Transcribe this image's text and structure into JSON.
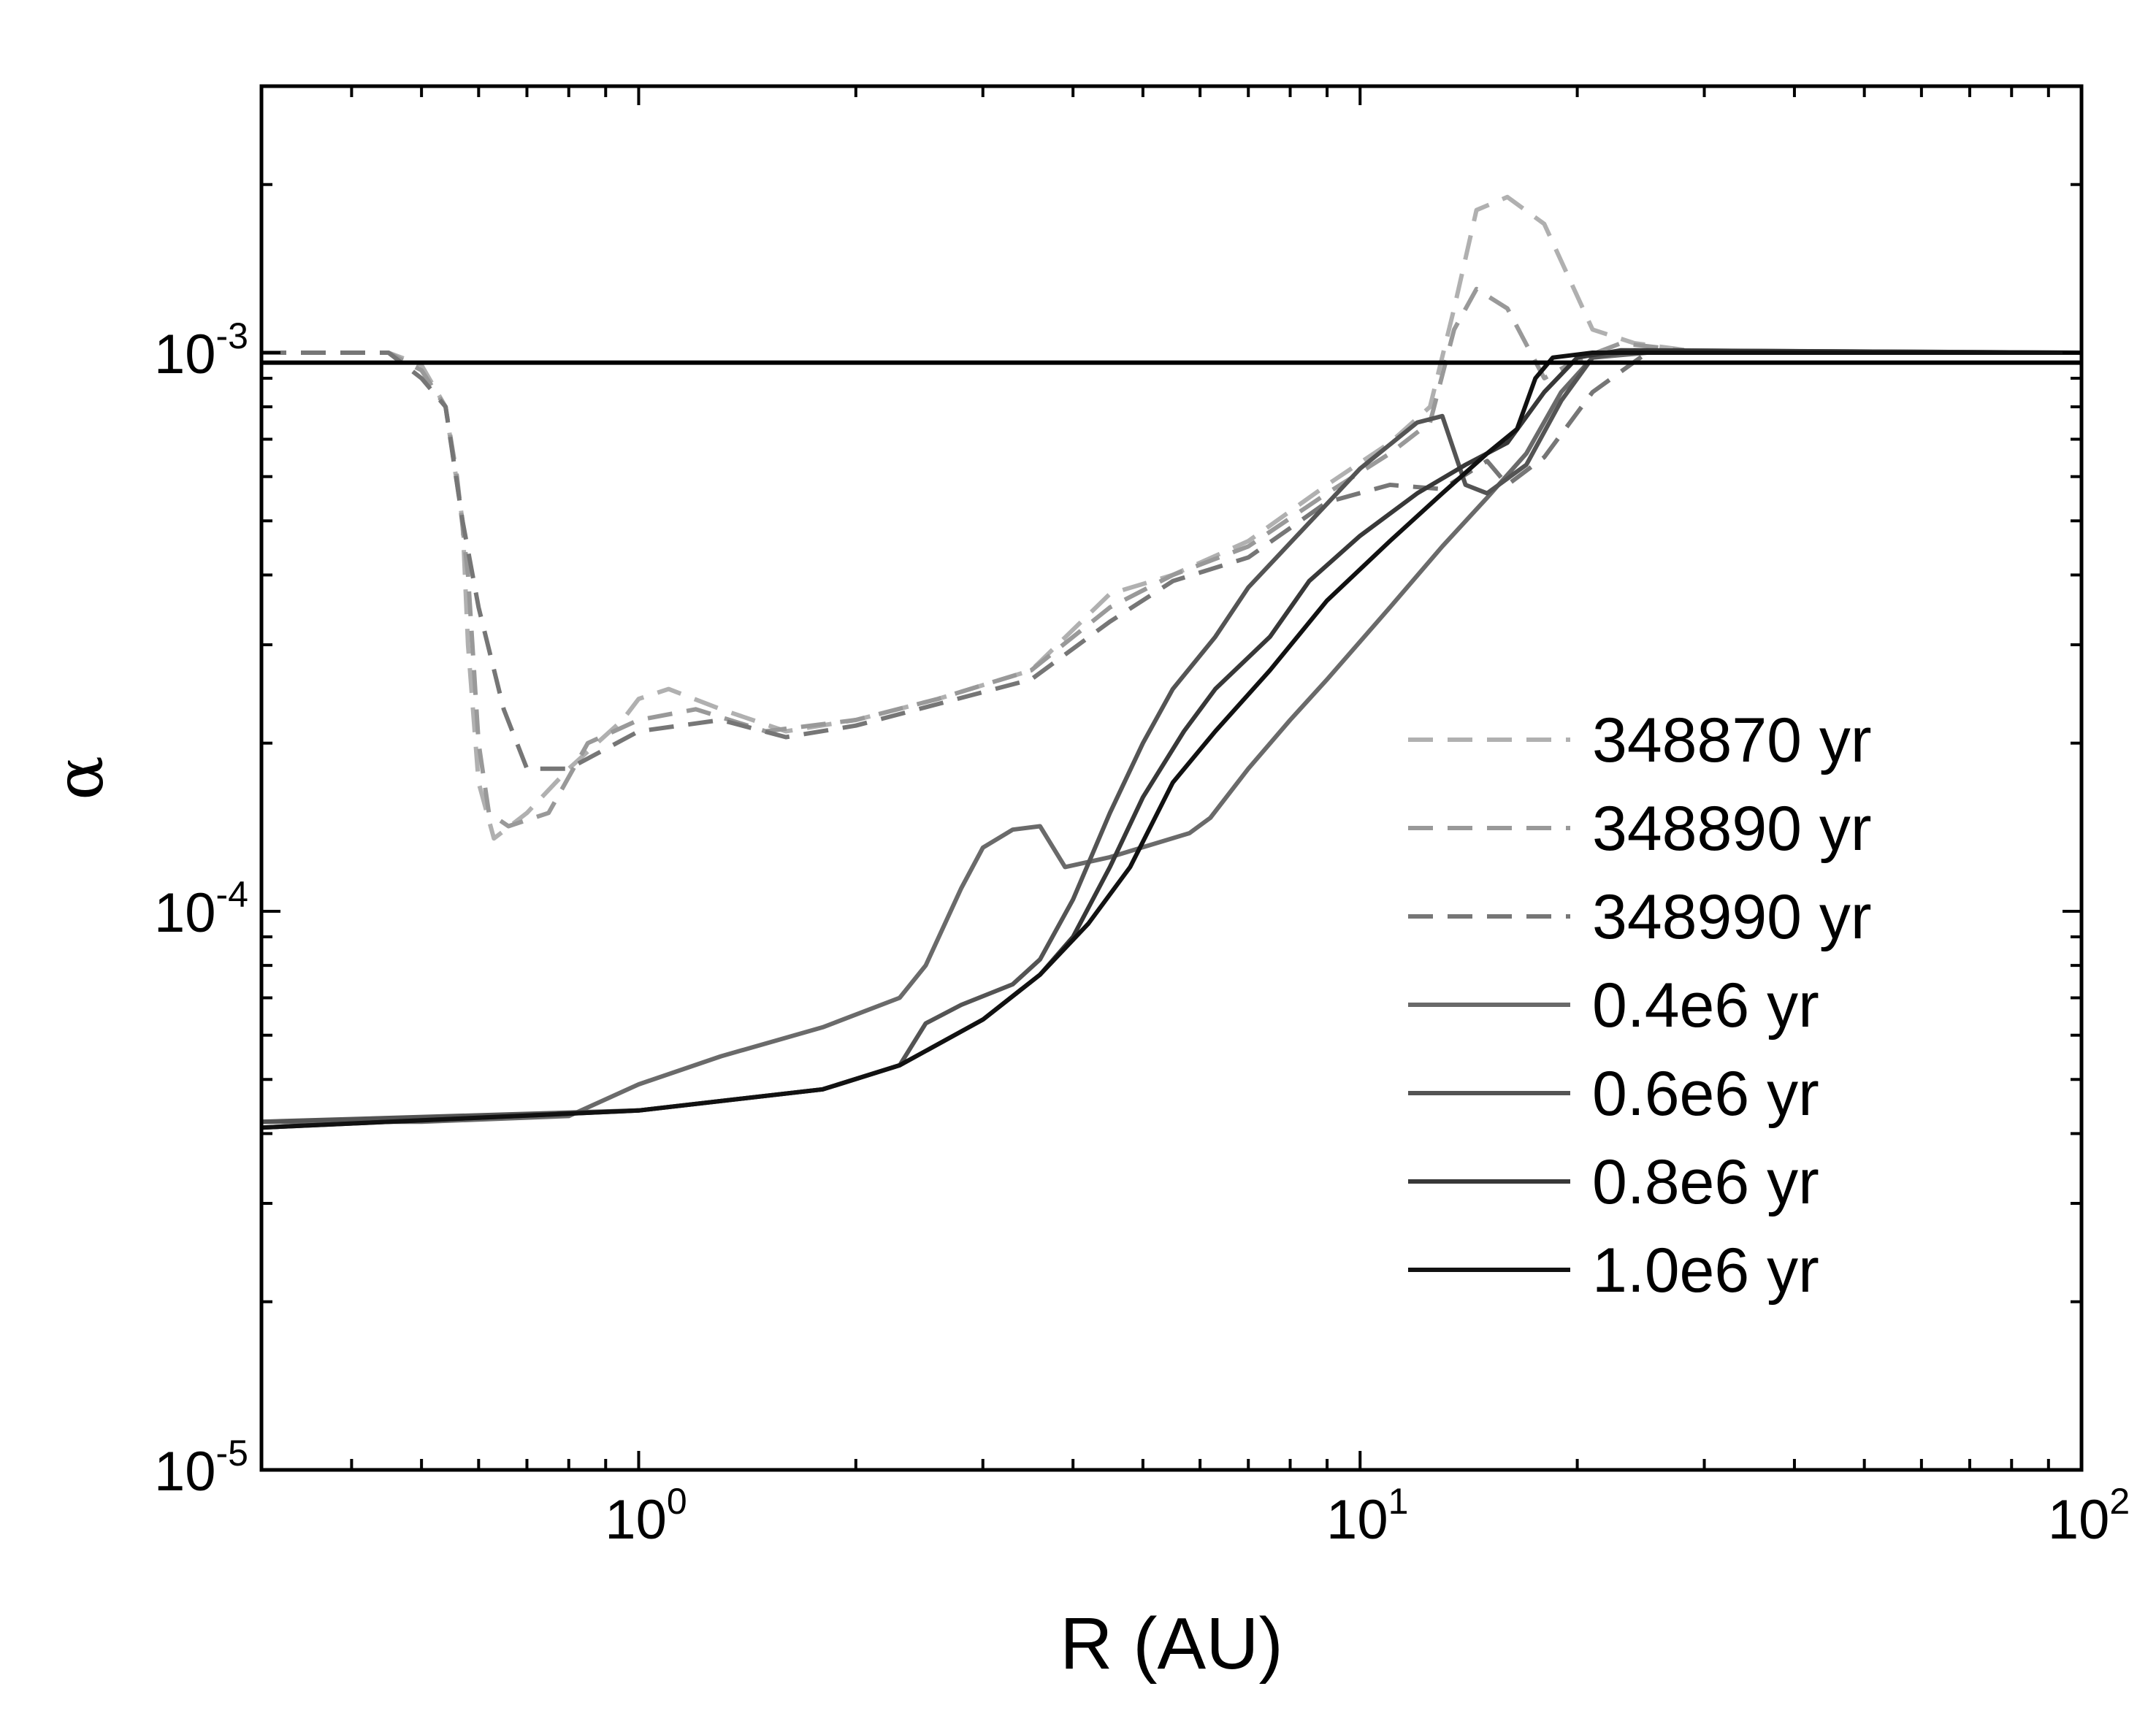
{
  "chart_data": {
    "type": "line",
    "title": "",
    "xlabel": "R (AU)",
    "ylabel": "α",
    "xscale": "log",
    "yscale": "log",
    "xlim": [
      0.3,
      100
    ],
    "ylim": [
      1e-05,
      0.003
    ],
    "x_ticks": [
      {
        "base": "10",
        "exp": "0",
        "value": 1
      },
      {
        "base": "10",
        "exp": "1",
        "value": 10
      },
      {
        "base": "10",
        "exp": "2",
        "value": 100
      }
    ],
    "y_ticks": [
      {
        "base": "10",
        "exp": "-5",
        "value": 1e-05
      },
      {
        "base": "10",
        "exp": "-4",
        "value": 0.0001
      },
      {
        "base": "10",
        "exp": "-3",
        "value": 0.001
      }
    ],
    "legend_position": "right",
    "series": [
      {
        "name": "348870 yr",
        "color": "#b0b0b0",
        "dash": "dashed",
        "points": [
          [
            0.3,
            0.001
          ],
          [
            0.45,
            0.001
          ],
          [
            0.5,
            0.00095
          ],
          [
            0.54,
            0.0008
          ],
          [
            0.57,
            0.0005
          ],
          [
            0.58,
            0.0003
          ],
          [
            0.6,
            0.00017
          ],
          [
            0.63,
            0.000135
          ],
          [
            0.7,
            0.00015
          ],
          [
            0.8,
            0.00018
          ],
          [
            0.95,
            0.00022
          ],
          [
            1.0,
            0.00024
          ],
          [
            1.1,
            0.00025
          ],
          [
            1.3,
            0.00023
          ],
          [
            1.6,
            0.00021
          ],
          [
            2.0,
            0.00022
          ],
          [
            2.6,
            0.00024
          ],
          [
            3.5,
            0.00027
          ],
          [
            4.5,
            0.00037
          ],
          [
            5.5,
            0.0004
          ],
          [
            7,
            0.00046
          ],
          [
            9,
            0.00058
          ],
          [
            11,
            0.00069
          ],
          [
            12.5,
            0.0008
          ],
          [
            13.5,
            0.0012
          ],
          [
            14.5,
            0.0018
          ],
          [
            16,
            0.0019
          ],
          [
            18,
            0.0017
          ],
          [
            21,
            0.0011
          ],
          [
            24,
            0.00104
          ],
          [
            30,
            0.001
          ],
          [
            100,
            0.001
          ]
        ]
      },
      {
        "name": "348890 yr",
        "color": "#999999",
        "dash": "dashed",
        "points": [
          [
            0.3,
            0.001
          ],
          [
            0.45,
            0.001
          ],
          [
            0.5,
            0.00093
          ],
          [
            0.54,
            0.0008
          ],
          [
            0.56,
            0.0006
          ],
          [
            0.58,
            0.0004
          ],
          [
            0.6,
            0.0002
          ],
          [
            0.62,
            0.00015
          ],
          [
            0.66,
            0.000142
          ],
          [
            0.75,
            0.00015
          ],
          [
            0.85,
            0.0002
          ],
          [
            1.0,
            0.00022
          ],
          [
            1.2,
            0.00023
          ],
          [
            1.5,
            0.00021
          ],
          [
            2.0,
            0.00022
          ],
          [
            2.6,
            0.00024
          ],
          [
            3.5,
            0.00027
          ],
          [
            4.5,
            0.00035
          ],
          [
            5.5,
            0.0004
          ],
          [
            7,
            0.00045
          ],
          [
            9,
            0.00056
          ],
          [
            11,
            0.00066
          ],
          [
            12.5,
            0.00075
          ],
          [
            13.5,
            0.0011
          ],
          [
            14.5,
            0.0013
          ],
          [
            16,
            0.0012
          ],
          [
            18,
            0.0009
          ],
          [
            20,
            0.00097
          ],
          [
            23,
            0.00104
          ],
          [
            30,
            0.001
          ],
          [
            100,
            0.001
          ]
        ]
      },
      {
        "name": "348990 yr",
        "color": "#767676",
        "dash": "dashed",
        "points": [
          [
            0.3,
            0.001
          ],
          [
            0.45,
            0.001
          ],
          [
            0.5,
            0.0009
          ],
          [
            0.54,
            0.0008
          ],
          [
            0.57,
            0.0005
          ],
          [
            0.6,
            0.00035
          ],
          [
            0.65,
            0.00023
          ],
          [
            0.7,
            0.00018
          ],
          [
            0.8,
            0.00018
          ],
          [
            1.0,
            0.00021
          ],
          [
            1.3,
            0.00022
          ],
          [
            1.6,
            0.000205
          ],
          [
            2.0,
            0.000215
          ],
          [
            2.6,
            0.000235
          ],
          [
            3.5,
            0.00026
          ],
          [
            4.5,
            0.00033
          ],
          [
            5.5,
            0.00039
          ],
          [
            7,
            0.00043
          ],
          [
            9,
            0.00054
          ],
          [
            11,
            0.00058
          ],
          [
            13,
            0.00057
          ],
          [
            15,
            0.00064
          ],
          [
            16,
            0.00058
          ],
          [
            18,
            0.00065
          ],
          [
            21,
            0.00085
          ],
          [
            25,
            0.001
          ],
          [
            30,
            0.001
          ],
          [
            100,
            0.001
          ]
        ]
      },
      {
        "name": "0.4e6 yr",
        "color": "#6a6a6a",
        "dash": "solid",
        "points": [
          [
            0.3,
            4.2e-05
          ],
          [
            0.5,
            4.2e-05
          ],
          [
            0.8,
            4.3e-05
          ],
          [
            1.0,
            4.9e-05
          ],
          [
            1.3,
            5.5e-05
          ],
          [
            1.8,
            6.2e-05
          ],
          [
            2.3,
            7e-05
          ],
          [
            2.5,
            8e-05
          ],
          [
            2.8,
            0.00011
          ],
          [
            3.0,
            0.00013
          ],
          [
            3.3,
            0.00014
          ],
          [
            3.6,
            0.000142
          ],
          [
            3.9,
            0.00012
          ],
          [
            4.5,
            0.000125
          ],
          [
            5.8,
            0.000138
          ],
          [
            6.2,
            0.000147
          ],
          [
            7,
            0.00018
          ],
          [
            8,
            0.00022
          ],
          [
            9,
            0.00026
          ],
          [
            11,
            0.00035
          ],
          [
            13,
            0.00045
          ],
          [
            15,
            0.00055
          ],
          [
            17,
            0.00066
          ],
          [
            19,
            0.00085
          ],
          [
            21,
            0.00098
          ],
          [
            25,
            0.001
          ],
          [
            100,
            0.001
          ]
        ]
      },
      {
        "name": "0.6e6 yr",
        "color": "#545454",
        "dash": "solid",
        "points": [
          [
            0.3,
            4.2e-05
          ],
          [
            1.0,
            4.4e-05
          ],
          [
            1.8,
            4.8e-05
          ],
          [
            2.3,
            5.3e-05
          ],
          [
            2.5,
            6.3e-05
          ],
          [
            2.8,
            6.8e-05
          ],
          [
            3.3,
            7.4e-05
          ],
          [
            3.6,
            8.2e-05
          ],
          [
            4,
            0.000105
          ],
          [
            4.5,
            0.00015
          ],
          [
            5,
            0.0002
          ],
          [
            5.5,
            0.00025
          ],
          [
            6.3,
            0.00031
          ],
          [
            7,
            0.00038
          ],
          [
            8.3,
            0.00048
          ],
          [
            10,
            0.00062
          ],
          [
            12,
            0.00075
          ],
          [
            13,
            0.00077
          ],
          [
            14,
            0.00058
          ],
          [
            15,
            0.00056
          ],
          [
            17,
            0.00063
          ],
          [
            19,
            0.00082
          ],
          [
            21,
            0.00098
          ],
          [
            24,
            0.00101
          ],
          [
            100,
            0.001
          ]
        ]
      },
      {
        "name": "0.8e6 yr",
        "color": "#383838",
        "dash": "solid",
        "points": [
          [
            0.3,
            4.1e-05
          ],
          [
            1.0,
            4.4e-05
          ],
          [
            1.8,
            4.8e-05
          ],
          [
            2.3,
            5.3e-05
          ],
          [
            3.0,
            6.4e-05
          ],
          [
            3.6,
            7.7e-05
          ],
          [
            4.0,
            9e-05
          ],
          [
            4.5,
            0.00012
          ],
          [
            5,
            0.00016
          ],
          [
            5.7,
            0.00021
          ],
          [
            6.3,
            0.00025
          ],
          [
            7.5,
            0.00031
          ],
          [
            8.5,
            0.00039
          ],
          [
            10,
            0.00047
          ],
          [
            12,
            0.00056
          ],
          [
            14,
            0.00063
          ],
          [
            16,
            0.00069
          ],
          [
            18,
            0.00085
          ],
          [
            20,
            0.00098
          ],
          [
            23,
            0.00101
          ],
          [
            100,
            0.001
          ]
        ]
      },
      {
        "name": "1.0e6 yr",
        "color": "#111111",
        "dash": "solid",
        "points": [
          [
            0.3,
            4.1e-05
          ],
          [
            1.0,
            4.4e-05
          ],
          [
            1.8,
            4.8e-05
          ],
          [
            2.3,
            5.3e-05
          ],
          [
            3.0,
            6.4e-05
          ],
          [
            3.6,
            7.7e-05
          ],
          [
            4.2,
            9.5e-05
          ],
          [
            4.8,
            0.00012
          ],
          [
            5.5,
            0.00017
          ],
          [
            6.3,
            0.00021
          ],
          [
            7.5,
            0.00027
          ],
          [
            9,
            0.00036
          ],
          [
            11,
            0.00046
          ],
          [
            13,
            0.00056
          ],
          [
            15,
            0.00066
          ],
          [
            16.5,
            0.00073
          ],
          [
            17.5,
            0.0009
          ],
          [
            18.5,
            0.00098
          ],
          [
            21,
            0.001
          ],
          [
            100,
            0.001
          ]
        ]
      },
      {
        "name": "",
        "color": "#000000",
        "dash": "solid",
        "legend": false,
        "points": [
          [
            0.3,
            0.00096
          ],
          [
            100,
            0.00096
          ]
        ]
      }
    ]
  }
}
